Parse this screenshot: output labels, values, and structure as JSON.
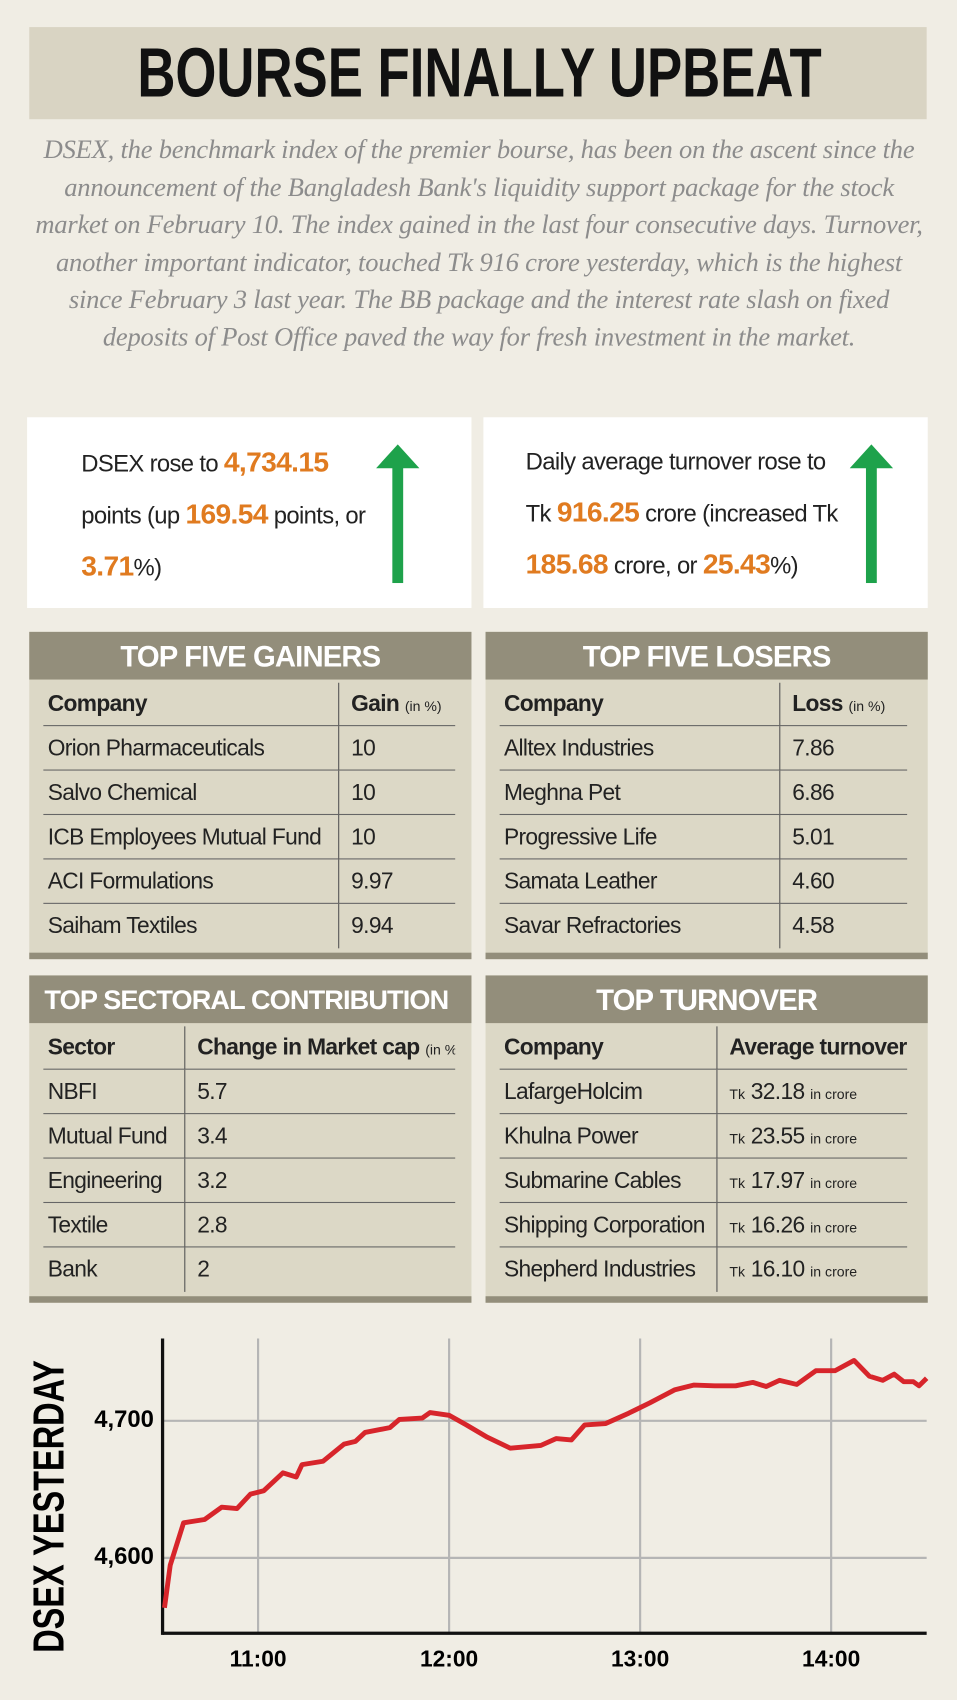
{
  "header": {
    "title": "BOURSE FINALLY UPBEAT"
  },
  "intro": "DSEX, the benchmark index of the premier bourse, has been on the ascent since the announcement of the Bangladesh Bank's liquidity support package for the stock market on February 10. The index gained in the last four consecutive days. Turnover, another important indicator, touched Tk 916 crore yesterday, which is the highest since February 3 last year. The BB package and the interest rate slash on fixed deposits of Post Office paved the way for fresh investment in the market.",
  "highlights": [
    {
      "parts": [
        "DSEX rose to ",
        "4,734.15",
        " points (up ",
        "169.54",
        " points, or ",
        "3.71",
        "%)"
      ]
    },
    {
      "parts": [
        "Daily average turnover rose to Tk ",
        "916.25",
        " crore (increased Tk ",
        "185.68",
        " crore, or ",
        "25.43",
        "%)"
      ]
    }
  ],
  "tables": [
    {
      "title": "TOP FIVE GAINERS",
      "columns": [
        [
          "Company"
        ],
        [
          "Gain",
          "(in %)"
        ]
      ],
      "rows": [
        [
          "Orion Pharmaceuticals",
          "10"
        ],
        [
          "Salvo Chemical",
          "10"
        ],
        [
          "ICB Employees Mutual Fund",
          "10"
        ],
        [
          "ACI Formulations",
          "9.97"
        ],
        [
          "Saiham Textiles",
          "9.94"
        ]
      ]
    },
    {
      "title": "TOP FIVE LOSERS",
      "columns": [
        [
          "Company"
        ],
        [
          "Loss",
          "(in %)"
        ]
      ],
      "rows": [
        [
          "Alltex Industries",
          "7.86"
        ],
        [
          "Meghna Pet",
          "6.86"
        ],
        [
          "Progressive Life",
          "5.01"
        ],
        [
          "Samata Leather",
          "4.60"
        ],
        [
          "Savar Refractories",
          "4.58"
        ]
      ]
    },
    {
      "title": "TOP SECTORAL CONTRIBUTION",
      "columns": [
        [
          "Sector"
        ],
        [
          "Change in Market cap",
          "(in %)"
        ]
      ],
      "rows": [
        [
          "NBFI",
          "5.7"
        ],
        [
          "Mutual Fund",
          "3.4"
        ],
        [
          "Engineering",
          "3.2"
        ],
        [
          "Textile",
          "2.8"
        ],
        [
          "Bank",
          "2"
        ]
      ]
    },
    {
      "title": "TOP TURNOVER",
      "columns": [
        [
          "Company"
        ],
        [
          "Average turnover"
        ]
      ],
      "rows": [
        [
          "LafargeHolcim",
          [
            "Tk",
            "32.18",
            "in crore"
          ]
        ],
        [
          "Khulna Power",
          [
            "Tk",
            "23.55",
            "in crore"
          ]
        ],
        [
          "Submarine Cables",
          [
            "Tk",
            "17.97",
            "in crore"
          ]
        ],
        [
          "Shipping Corporation",
          [
            "Tk",
            "16.26",
            "in crore"
          ]
        ],
        [
          "Shepherd Industries",
          [
            "Tk",
            "16.10",
            "in crore"
          ]
        ]
      ]
    }
  ],
  "chart_data": {
    "type": "line",
    "ylabel": "DSEX YESTERDAY",
    "x": [
      10.51,
      10.54,
      10.61,
      10.72,
      10.81,
      10.89,
      10.96,
      11.03,
      11.13,
      11.2,
      11.23,
      11.34,
      11.45,
      11.51,
      11.56,
      11.69,
      11.74,
      11.86,
      11.9,
      12.0,
      12.09,
      12.2,
      12.32,
      12.48,
      12.56,
      12.64,
      12.71,
      12.82,
      12.94,
      13.05,
      13.18,
      13.28,
      13.39,
      13.5,
      13.59,
      13.66,
      13.73,
      13.82,
      13.92,
      14.02,
      14.12,
      14.2,
      14.27,
      14.33,
      14.38,
      14.43,
      14.46,
      14.5
    ],
    "series": [
      {
        "color": "#d7252b",
        "values": [
          4563.6,
          4594.6,
          4625.6,
          4628,
          4637,
          4636,
          4646.5,
          4649,
          4662,
          4659,
          4668,
          4670.5,
          4683,
          4685,
          4691.5,
          4695,
          4701,
          4702,
          4706,
          4704,
          4697,
          4688,
          4680,
          4682,
          4687,
          4686,
          4697,
          4698,
          4705.5,
          4713,
          4722.5,
          4726,
          4725.5,
          4725.5,
          4728,
          4725,
          4729.5,
          4726.5,
          4736.5,
          4736.5,
          4744,
          4732.5,
          4729.5,
          4734,
          4728.5,
          4728.5,
          4725.5,
          4731
        ]
      }
    ],
    "xlim": [
      10.5,
      14.5
    ],
    "ylim": [
      4545,
      4760
    ],
    "xticks": [
      {
        "value": 11,
        "label": "11:00"
      },
      {
        "value": 12,
        "label": "12:00"
      },
      {
        "value": 13,
        "label": "13:00"
      },
      {
        "value": 14,
        "label": "14:00"
      }
    ],
    "yticks": [
      {
        "value": 4600,
        "label": "4,600"
      },
      {
        "value": 4700,
        "label": "4,700"
      }
    ],
    "grid": true
  }
}
